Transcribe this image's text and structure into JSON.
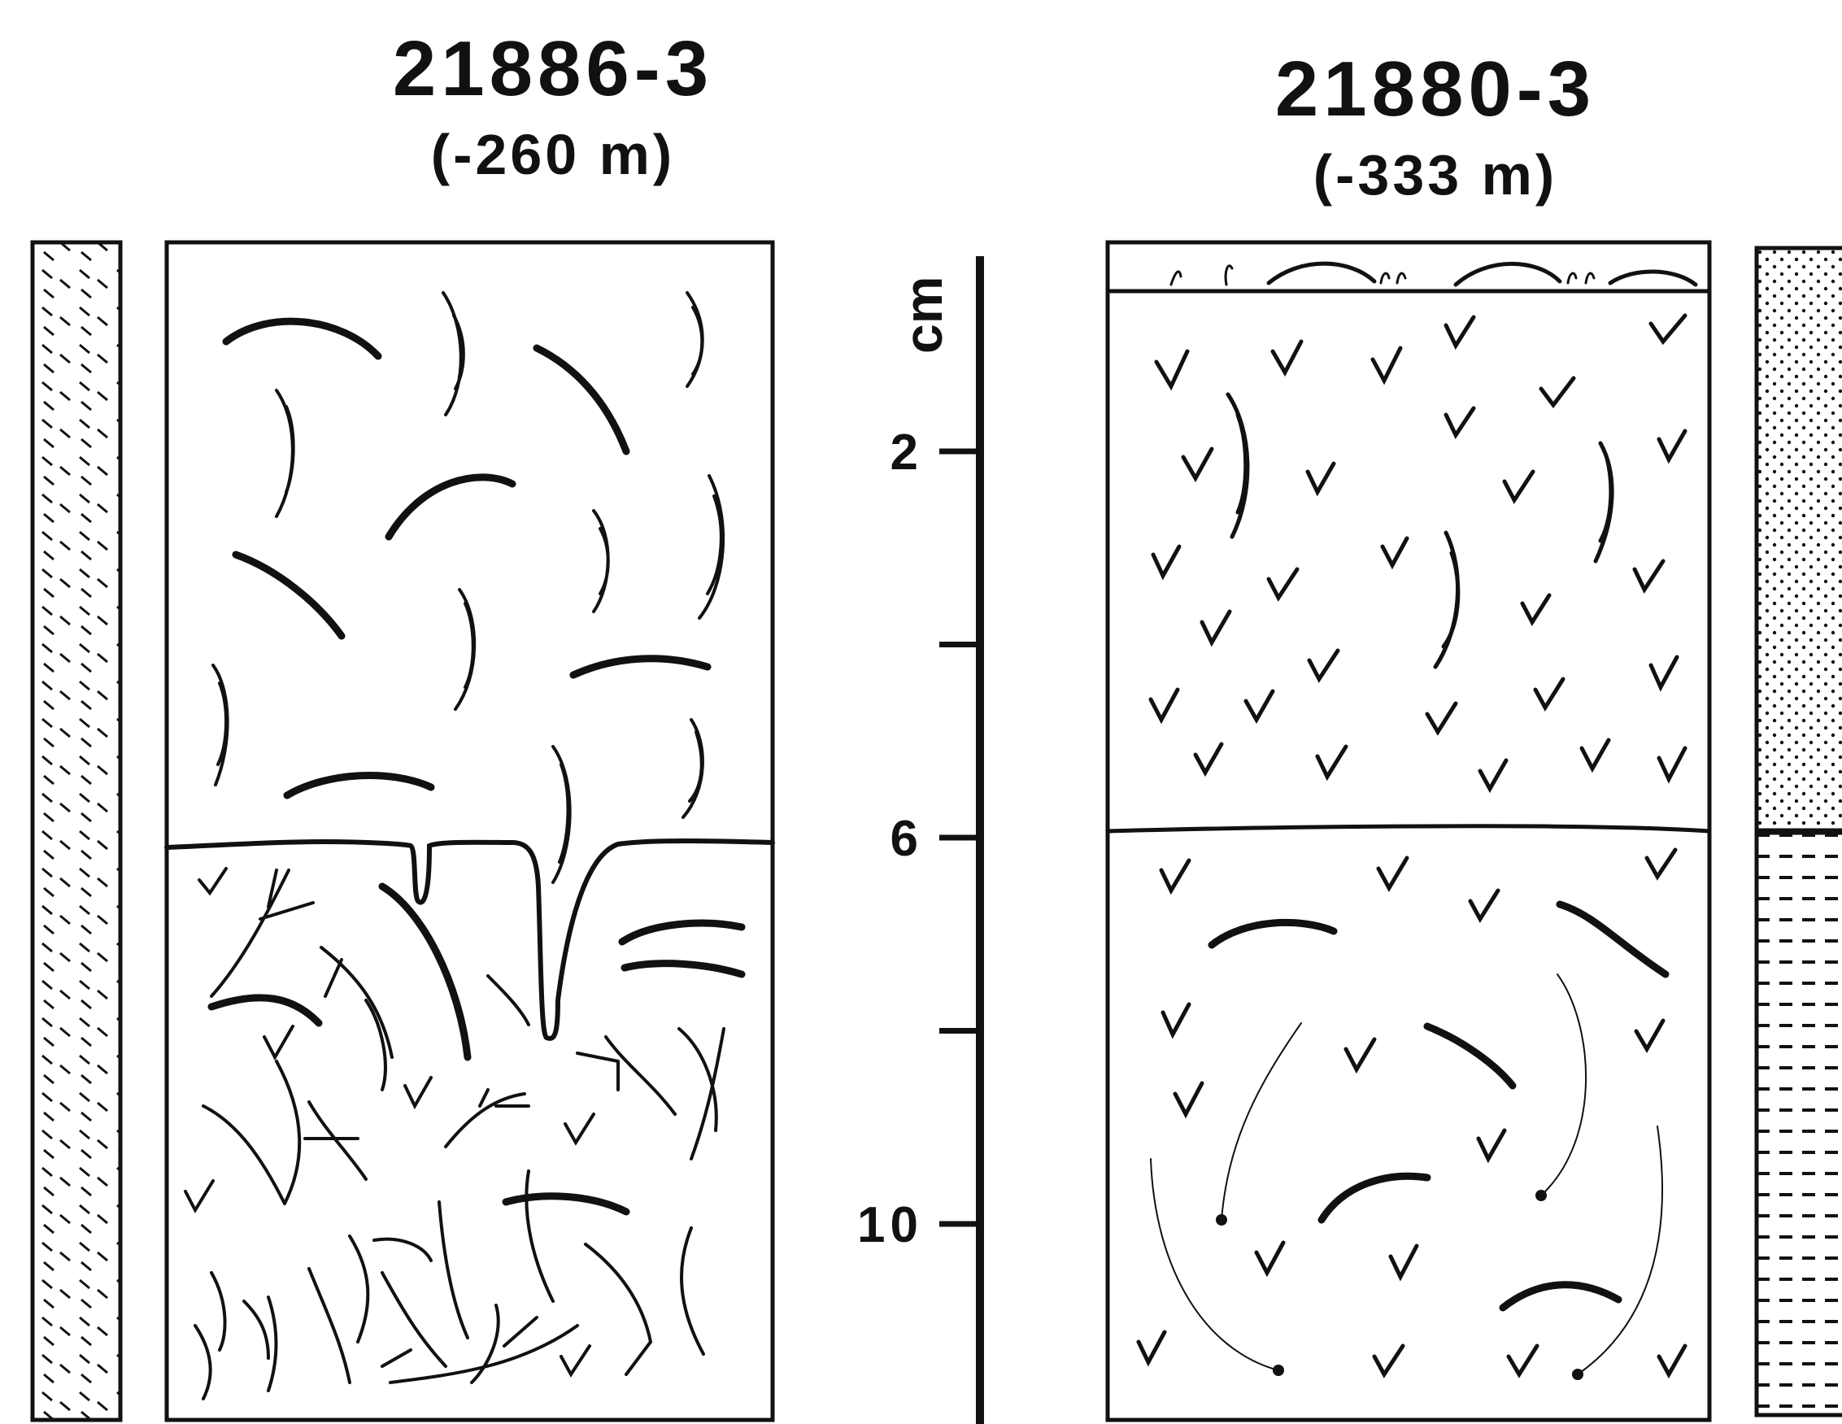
{
  "left_core": {
    "id": "21886-3",
    "depth": "(-260 m)"
  },
  "right_core": {
    "id": "21880-3",
    "depth": "(-333 m)"
  },
  "scale": {
    "unit": "cm",
    "ticks": [
      {
        "value": 2,
        "label": "2"
      },
      {
        "value": 4,
        "label": ""
      },
      {
        "value": 6,
        "label": "6"
      },
      {
        "value": 8,
        "label": ""
      },
      {
        "value": 10,
        "label": "10"
      }
    ]
  },
  "colors": {
    "ink": "#111111",
    "background": "#ffffff"
  }
}
